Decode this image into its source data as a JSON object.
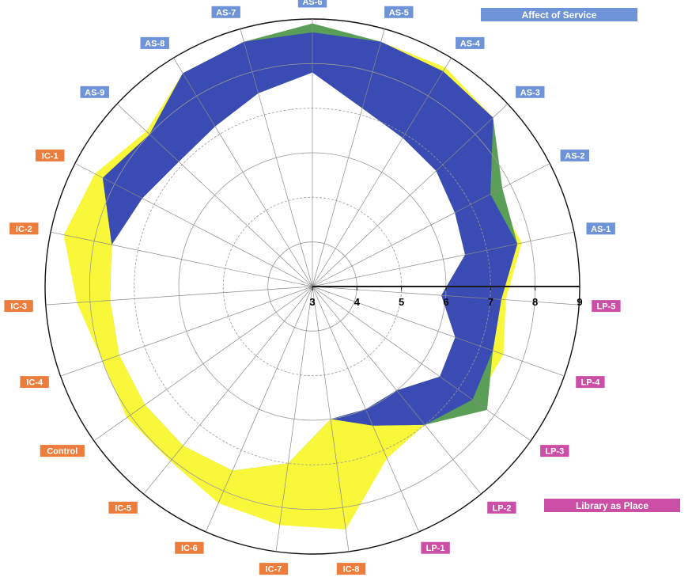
{
  "chart_data": {
    "type": "radar",
    "title": "",
    "r_range": [
      3,
      9
    ],
    "r_ticks": [
      "3",
      "4",
      "5",
      "6",
      "7",
      "8",
      "9"
    ],
    "r_ticks_values": [
      3,
      4,
      5,
      6,
      7,
      8,
      9
    ],
    "grid": true,
    "categories": [
      "AS-6",
      "AS-5",
      "AS-4",
      "AS-3",
      "AS-2",
      "AS-1",
      "LP-5",
      "LP-4",
      "LP-3",
      "LP-2",
      "LP-1",
      "IC-8",
      "IC-7",
      "IC-6",
      "IC-5",
      "Control",
      "IC-4",
      "IC-3",
      "IC-2",
      "IC-1",
      "AS-9",
      "AS-8",
      "AS-7"
    ],
    "category_groups": [
      "AS",
      "AS",
      "AS",
      "AS",
      "AS",
      "AS",
      "LP",
      "LP",
      "LP",
      "LP",
      "LP",
      "IC",
      "IC",
      "IC",
      "IC",
      "IC",
      "IC",
      "IC",
      "IC",
      "IC",
      "AS",
      "AS",
      "AS"
    ],
    "group_colors": {
      "AS": "#6f93d8",
      "LP": "#cc4fa6",
      "IC": "#ec7d3c"
    },
    "series": [
      {
        "role": "max",
        "color": "#f8f73a",
        "values": [
          8.8,
          8.7,
          8.75,
          8.55,
          7.6,
          7.8,
          7.35,
          7.55,
          7.5,
          7.0,
          7.2,
          8.5,
          8.4,
          8.3,
          8.05,
          8.1,
          8.0,
          8.3,
          8.7,
          8.5,
          8.1,
          8.6,
          8.7
        ]
      },
      {
        "role": "perceived",
        "color": "#5b9e58",
        "values": [
          8.9,
          8.7,
          8.65,
          8.55,
          7.8,
          7.7,
          7.25,
          7.3,
          7.8,
          7.0,
          6.4,
          6.0,
          7.0,
          7.5,
          7.6,
          7.6,
          7.6,
          7.55,
          7.6,
          8.3,
          8.0,
          8.6,
          8.7
        ]
      },
      {
        "role": "min",
        "color": "#3a4cb3",
        "values": [
          7.8,
          7.15,
          6.9,
          6.8,
          6.6,
          6.5,
          5.9,
          6.4,
          6.5,
          6.0,
          6.0,
          6.0,
          7.0,
          7.5,
          7.6,
          7.6,
          7.6,
          7.55,
          7.6,
          7.3,
          7.1,
          7.2,
          7.5
        ]
      }
    ],
    "legend": [
      {
        "label": "Affect of Service",
        "color": "#6f93d8",
        "position": "top-right"
      },
      {
        "label": "Library as Place",
        "color": "#cc4fa6",
        "position": "bottom-right"
      }
    ]
  }
}
